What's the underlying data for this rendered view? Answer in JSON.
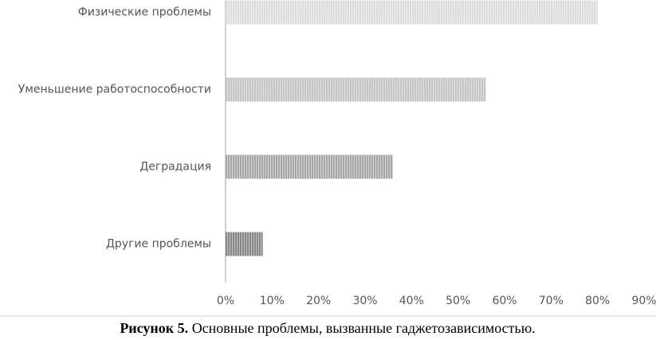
{
  "chart_data": {
    "type": "hbar",
    "categories": [
      "Физические проблемы",
      "Уменьшение работоспособности",
      "Деградация",
      "Другие проблемы"
    ],
    "values": [
      80,
      56,
      36,
      8
    ],
    "colors": [
      "#dcdcdc",
      "#c4c4c4",
      "#a6a6a6",
      "#858585"
    ],
    "xlim": [
      0,
      90
    ],
    "xticks": [
      {
        "value": 0,
        "label": "0%"
      },
      {
        "value": 10,
        "label": "10%"
      },
      {
        "value": 20,
        "label": "20%"
      },
      {
        "value": 30,
        "label": "30%"
      },
      {
        "value": 40,
        "label": "40%"
      },
      {
        "value": 50,
        "label": "50%"
      },
      {
        "value": 60,
        "label": "60%"
      },
      {
        "value": 70,
        "label": "70%"
      },
      {
        "value": 80,
        "label": "80%"
      },
      {
        "value": 90,
        "label": "90%"
      }
    ],
    "grid": false,
    "caption": {
      "label": "Рисунок 5.",
      "text": "Основные проблемы, вызванные гаджетозависимостью."
    }
  }
}
